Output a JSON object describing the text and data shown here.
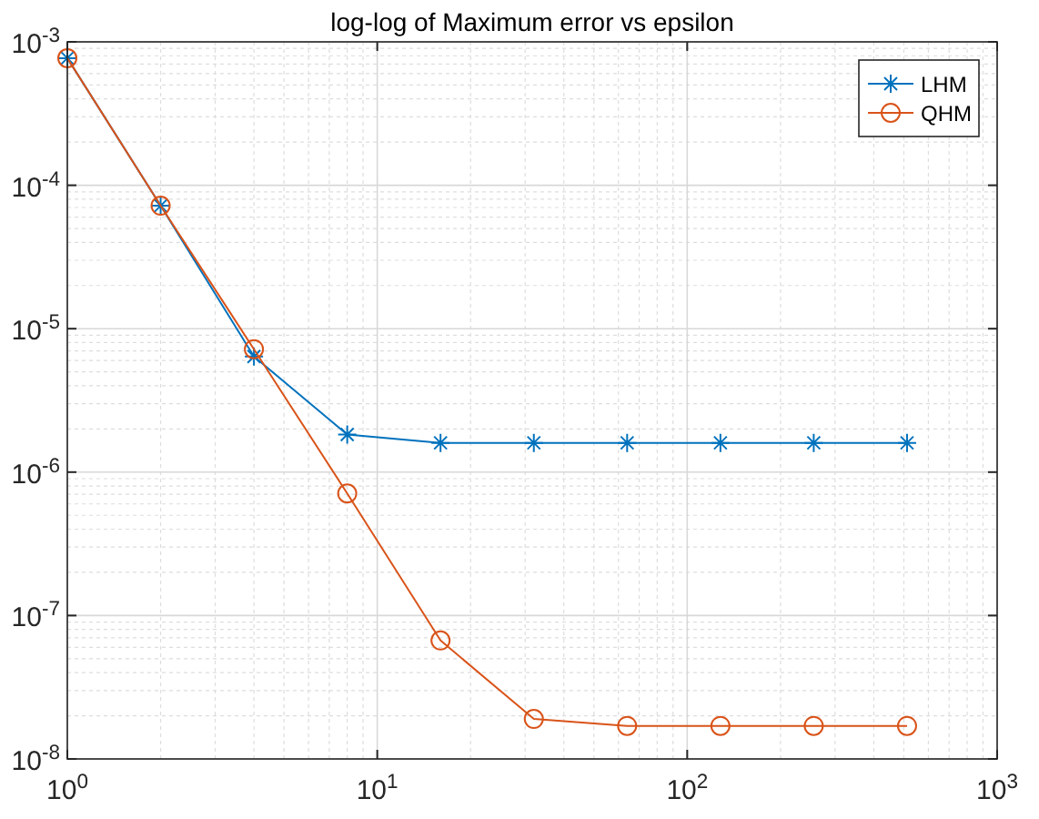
{
  "chart_data": {
    "type": "line",
    "title": "log-log of Maximum error vs epsilon",
    "log": "xy",
    "grid": true,
    "legend": "top right",
    "line_style": "solid",
    "x": [
      1,
      2,
      4,
      8,
      16,
      32,
      64,
      128,
      256,
      512
    ],
    "xlim": [
      1,
      1000
    ],
    "ylim": [
      1e-08,
      0.001
    ],
    "xticks": [
      {
        "value": 1,
        "label": "10$^{0}$"
      },
      {
        "value": 10,
        "label": "10$^{1}$"
      },
      {
        "value": 100,
        "label": "10$^{2}$"
      },
      {
        "value": 1000,
        "label": "10$^{3}$"
      }
    ],
    "yticks": [
      {
        "value": 1e-08,
        "label": "10$^{-8}$"
      },
      {
        "value": 1e-07,
        "label": "10$^{-7}$"
      },
      {
        "value": 1e-06,
        "label": "10$^{-6}$"
      },
      {
        "value": 1e-05,
        "label": "10$^{-5}$"
      },
      {
        "value": 0.0001,
        "label": "10$^{-4}$"
      },
      {
        "value": 0.001,
        "label": "10$^{-3}$"
      }
    ],
    "series": [
      {
        "name": "LHM",
        "color": "#0072bd",
        "marker": "cross",
        "values": [
          0.00077,
          7.2e-05,
          6.4e-06,
          1.83e-06,
          1.6e-06,
          1.6e-06,
          1.6e-06,
          1.6e-06,
          1.6e-06,
          1.6e-06
        ]
      },
      {
        "name": "QHM",
        "color": "#d95319",
        "marker": "circle",
        "values": [
          0.00077,
          7.2e-05,
          7.2e-06,
          7.1e-07,
          6.7e-08,
          1.9e-08,
          1.7e-08,
          1.7e-08,
          1.7e-08,
          1.7e-08
        ]
      }
    ]
  }
}
